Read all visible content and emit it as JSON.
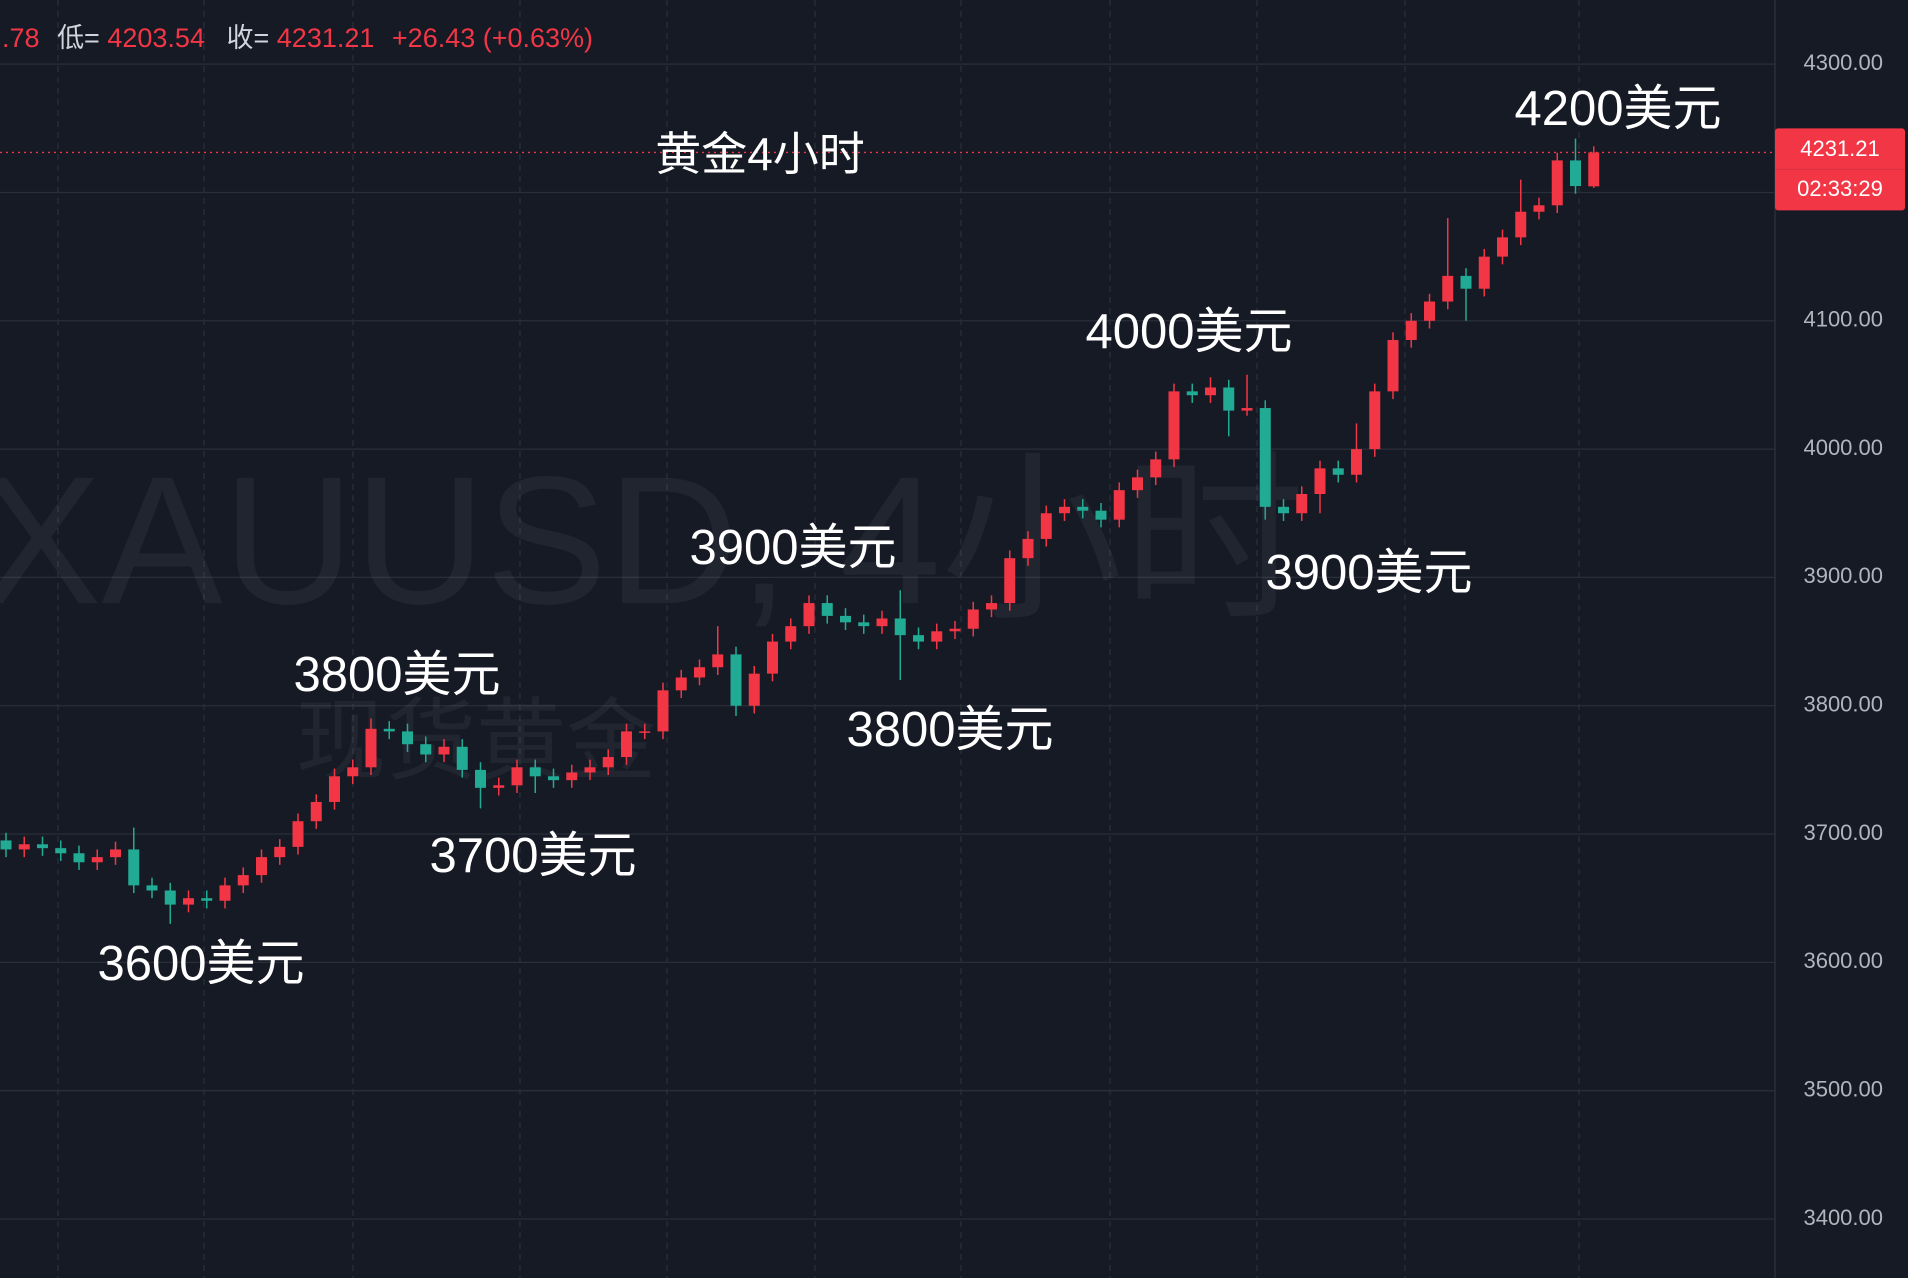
{
  "chart_data": {
    "type": "candlestick",
    "title": "黄金4小时",
    "header": [
      ".78",
      "低=",
      "4203.54",
      "收=",
      "4231.21",
      "+26.43 (+0.63%)"
    ],
    "watermark": [
      "XAUUSD, 4小时",
      "现货黄金"
    ],
    "annotations": [
      "4200美元",
      "4000美元",
      "3900美元",
      "3900美元",
      "3800美元",
      "3800美元",
      "3700美元",
      "3600美元"
    ],
    "countdown": "02:33:29",
    "up_color": "#f23645",
    "down_color": "#22ab94",
    "grid": true,
    "ylim": [
      3354,
      4350
    ],
    "yticks": [
      {
        "value": 3400,
        "label": "3400.00"
      },
      {
        "value": 3500,
        "label": "3500.00"
      },
      {
        "value": 3600,
        "label": "3600.00"
      },
      {
        "value": 3700,
        "label": "3700.00"
      },
      {
        "value": 3800,
        "label": "3800.00"
      },
      {
        "value": 3900,
        "label": "3900.00"
      },
      {
        "value": 4000,
        "label": "4000.00"
      },
      {
        "value": 4100,
        "label": "4100.00"
      },
      {
        "value": 4200,
        "label": "4200.00"
      },
      {
        "value": 4300,
        "label": "4300.00"
      }
    ],
    "open": [
      3695,
      3688,
      3692,
      3689,
      3685,
      3678,
      3682,
      3688,
      3660,
      3656,
      3645,
      3650,
      3648,
      3660,
      3668,
      3682,
      3690,
      3710,
      3725,
      3745,
      3752,
      3782,
      3780,
      3770,
      3762,
      3768,
      3750,
      3736,
      3738,
      3752,
      3745,
      3742,
      3748,
      3752,
      3760,
      3780,
      3780,
      3812,
      3822,
      3830,
      3840,
      3800,
      3825,
      3850,
      3862,
      3880,
      3870,
      3865,
      3862,
      3868,
      3855,
      3850,
      3858,
      3860,
      3875,
      3880,
      3915,
      3930,
      3950,
      3955,
      3952,
      3945,
      3968,
      3978,
      3992,
      4045,
      4042,
      4048,
      4030,
      4032,
      3955,
      3950,
      3965,
      3985,
      3980,
      4000,
      4045,
      4085,
      4100,
      4115,
      4135,
      4125,
      4150,
      4165,
      4185,
      4190,
      4225,
      4204.78
    ],
    "high": [
      3701,
      3698,
      3698,
      3695,
      3691,
      3688,
      3694,
      3705,
      3666,
      3662,
      3656,
      3656,
      3666,
      3674,
      3688,
      3696,
      3716,
      3731,
      3751,
      3758,
      3790,
      3788,
      3786,
      3776,
      3774,
      3774,
      3756,
      3744,
      3758,
      3758,
      3751,
      3754,
      3758,
      3766,
      3786,
      3786,
      3818,
      3828,
      3836,
      3862,
      3846,
      3831,
      3856,
      3868,
      3886,
      3886,
      3876,
      3871,
      3874,
      3890,
      3861,
      3864,
      3866,
      3881,
      3886,
      3921,
      3936,
      3956,
      3961,
      3961,
      3958,
      3974,
      3984,
      3998,
      4051,
      4051,
      4056,
      4054,
      4058,
      4038,
      3961,
      3971,
      3991,
      3991,
      4020,
      4051,
      4091,
      4106,
      4121,
      4180,
      4141,
      4156,
      4171,
      4210,
      4196,
      4231,
      4242,
      4236
    ],
    "low": [
      3682,
      3682,
      3683,
      3679,
      3672,
      3672,
      3676,
      3654,
      3650,
      3630,
      3639,
      3642,
      3642,
      3654,
      3662,
      3676,
      3684,
      3704,
      3719,
      3739,
      3746,
      3774,
      3764,
      3756,
      3756,
      3744,
      3720,
      3730,
      3732,
      3732,
      3736,
      3736,
      3742,
      3746,
      3754,
      3774,
      3774,
      3806,
      3816,
      3824,
      3792,
      3794,
      3819,
      3844,
      3856,
      3864,
      3859,
      3856,
      3856,
      3820,
      3844,
      3844,
      3852,
      3854,
      3869,
      3874,
      3909,
      3924,
      3944,
      3946,
      3939,
      3939,
      3962,
      3972,
      3986,
      4036,
      4036,
      4010,
      4026,
      3945,
      3944,
      3944,
      3950,
      3974,
      3974,
      3994,
      4039,
      4079,
      4094,
      4109,
      4100,
      4119,
      4144,
      4159,
      4179,
      4184,
      4199,
      4203.54
    ],
    "close": [
      3688,
      3692,
      3689,
      3685,
      3678,
      3682,
      3688,
      3660,
      3656,
      3645,
      3650,
      3648,
      3660,
      3668,
      3682,
      3690,
      3710,
      3725,
      3745,
      3752,
      3782,
      3780,
      3770,
      3762,
      3768,
      3750,
      3736,
      3738,
      3752,
      3745,
      3742,
      3748,
      3752,
      3760,
      3780,
      3780,
      3812,
      3822,
      3830,
      3840,
      3800,
      3825,
      3850,
      3862,
      3880,
      3870,
      3865,
      3862,
      3868,
      3855,
      3850,
      3858,
      3860,
      3875,
      3880,
      3915,
      3930,
      3950,
      3955,
      3952,
      3945,
      3968,
      3978,
      3992,
      4045,
      4042,
      4048,
      4030,
      4032,
      3955,
      3950,
      3965,
      3985,
      3980,
      4000,
      4045,
      4085,
      4100,
      4115,
      4135,
      4125,
      4150,
      4165,
      4185,
      4190,
      4225,
      4205,
      4231.21
    ]
  }
}
